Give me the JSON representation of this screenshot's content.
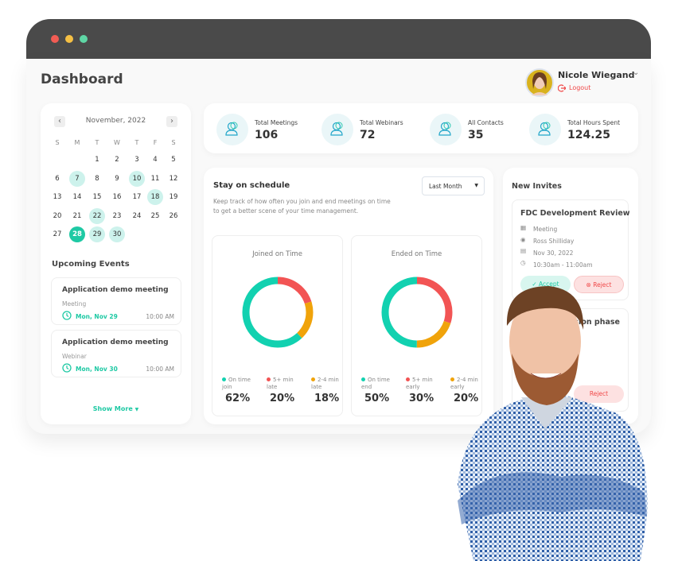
{
  "header": {
    "title": "Dashboard",
    "user_name": "Nicole Wiegand",
    "logout_label": "Logout"
  },
  "calendar": {
    "month": "November, 2022",
    "weekdays": [
      "S",
      "M",
      "T",
      "W",
      "T",
      "F",
      "S"
    ],
    "start_weekday": 2,
    "days_in_month": 30,
    "highlighted": [
      7,
      10,
      18,
      22,
      29,
      30
    ],
    "selected": 28
  },
  "upcoming": {
    "title": "Upcoming Events",
    "events": [
      {
        "title": "Application demo meeting",
        "type": "Meeting",
        "date": "Mon, Nov 29",
        "time": "10:00 AM"
      },
      {
        "title": "Application demo meeting",
        "type": "Webinar",
        "date": "Mon, Nov 30",
        "time": "10:00 AM"
      }
    ],
    "show_more": "Show More"
  },
  "stats": [
    {
      "label": "Total Meetings",
      "value": "106"
    },
    {
      "label": "Total Webinars",
      "value": "72"
    },
    {
      "label": "All Contacts",
      "value": "35"
    },
    {
      "label": "Total Hours Spent",
      "value": "124.25"
    }
  ],
  "schedule": {
    "title": "Stay on schedule",
    "description": "Keep track of how often you join and end meetings on time to get a better scene of your time management.",
    "period": "Last Month",
    "charts": [
      {
        "title": "Joined on Time",
        "segments": [
          {
            "label": "5+ min late",
            "value": 20,
            "color": "#f25454"
          },
          {
            "label": "2-4 min late",
            "value": 18,
            "color": "#f0a30a"
          },
          {
            "label": "On time join",
            "value": 62,
            "color": "#12d1b0"
          }
        ],
        "legend": [
          {
            "label": "On time join",
            "value": "62%",
            "color": "#12d1b0"
          },
          {
            "label": "5+ min late",
            "value": "20%",
            "color": "#f25454"
          },
          {
            "label": "2-4 min late",
            "value": "18%",
            "color": "#f0a30a"
          }
        ]
      },
      {
        "title": "Ended on Time",
        "segments": [
          {
            "label": "5+ min early",
            "value": 30,
            "color": "#f25454"
          },
          {
            "label": "2-4 min early",
            "value": 20,
            "color": "#f0a30a"
          },
          {
            "label": "On time end",
            "value": 50,
            "color": "#12d1b0"
          }
        ],
        "legend": [
          {
            "label": "On time end",
            "value": "50%",
            "color": "#12d1b0"
          },
          {
            "label": "5+ min early",
            "value": "30%",
            "color": "#f25454"
          },
          {
            "label": "2-4 min early",
            "value": "20%",
            "color": "#f0a30a"
          }
        ]
      }
    ]
  },
  "invites": {
    "title": "New Invites",
    "items": [
      {
        "title": "FDC Development Review",
        "type": "Meeting",
        "host": "Ross Shilliday",
        "date": "Nov 30, 2022",
        "time": "10:30am - 11:00am",
        "accept": "Accept",
        "reject": "Reject"
      },
      {
        "title": "sion phase",
        "reject": "Reject"
      }
    ]
  },
  "colors": {
    "accent": "#1ec9a4",
    "danger": "#f04848",
    "frame": "#4a4a4a"
  }
}
